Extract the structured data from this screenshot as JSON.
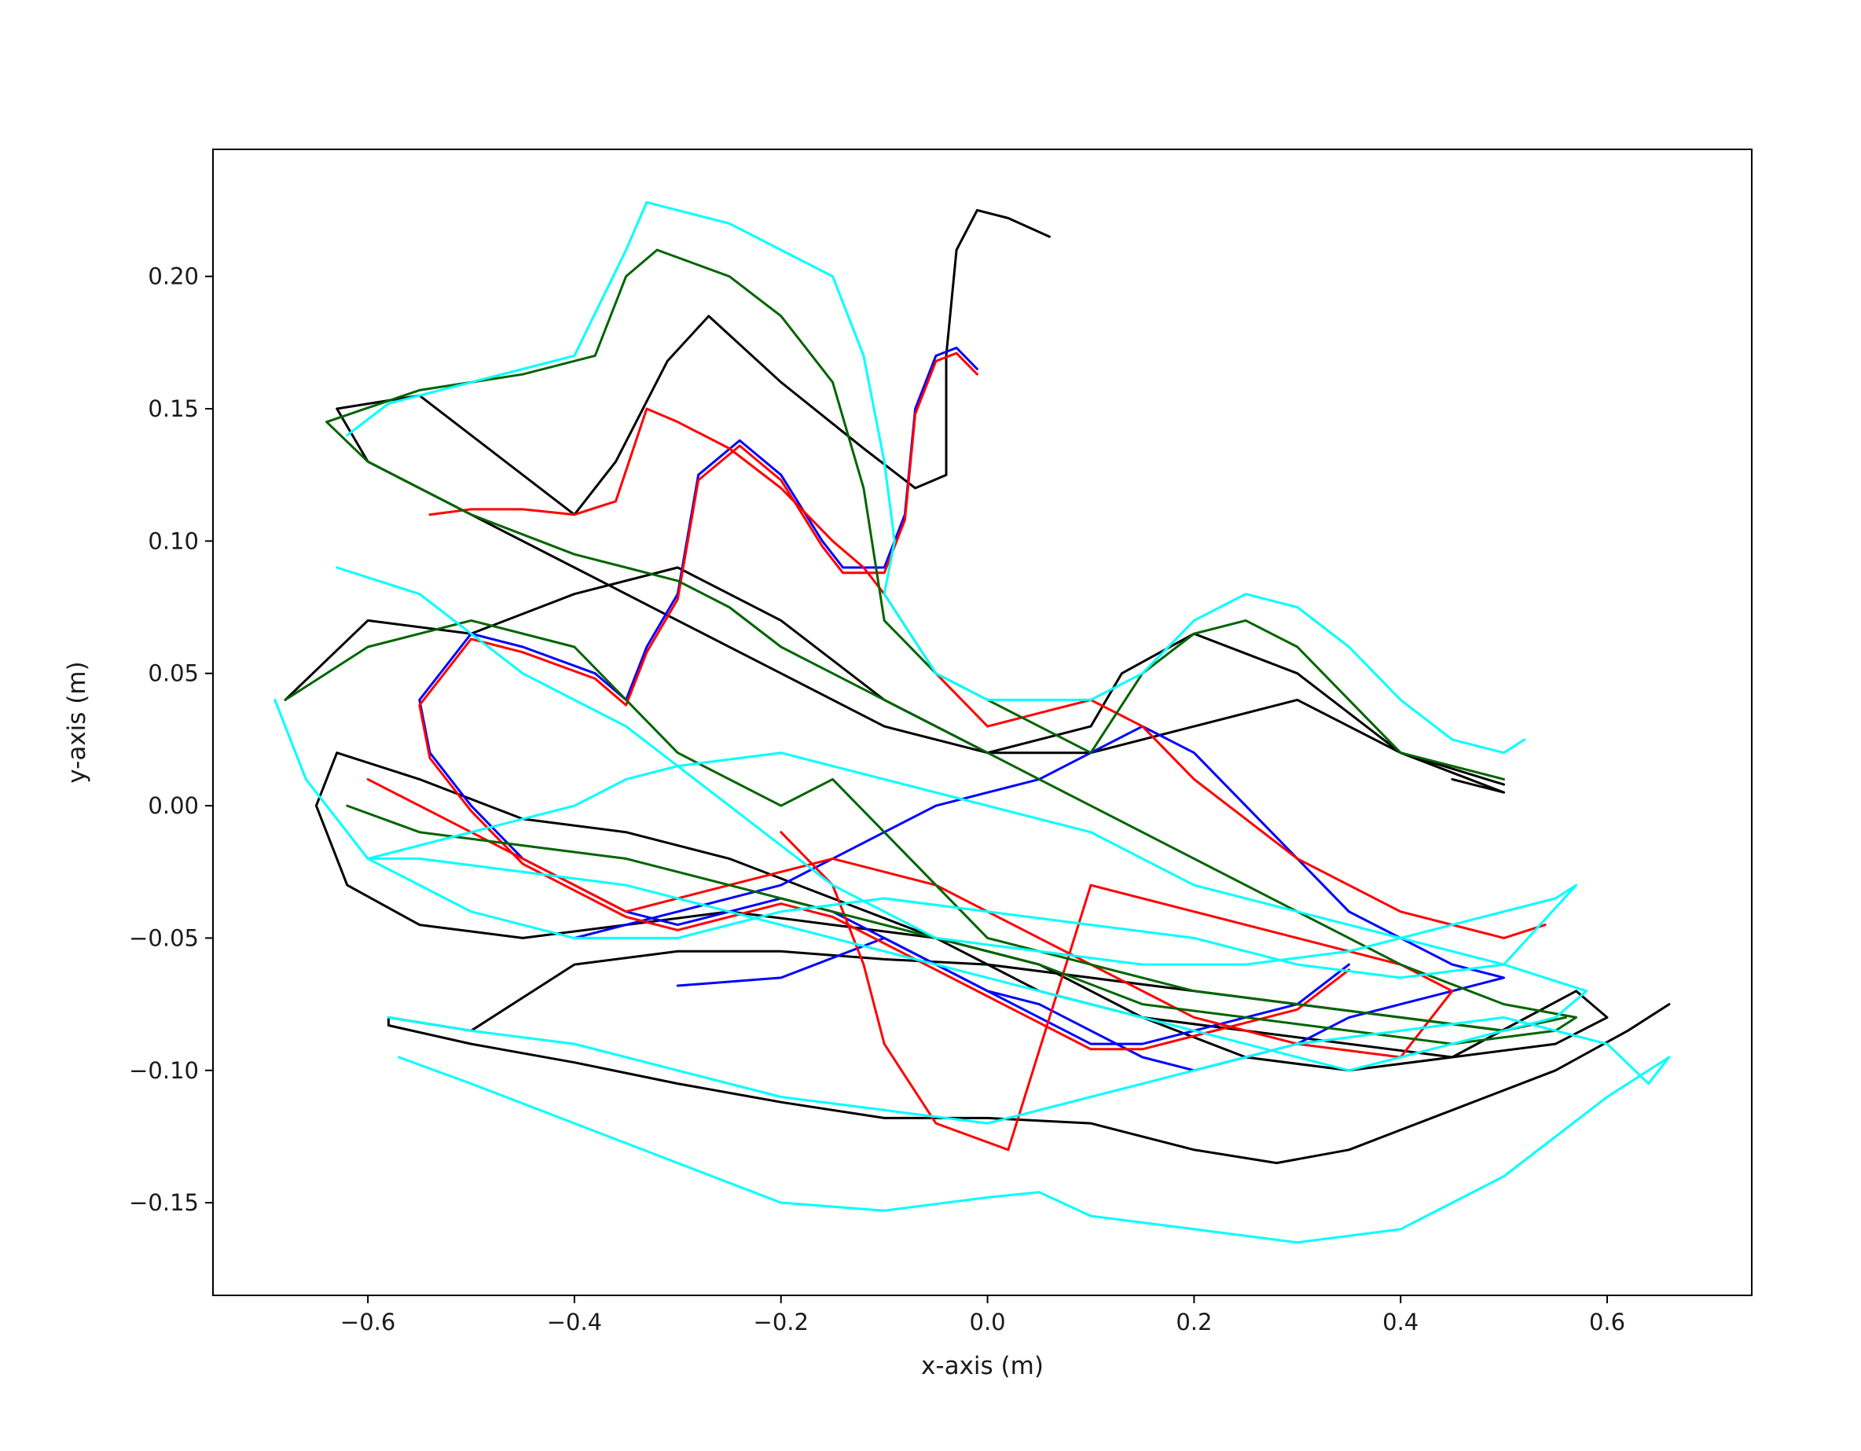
{
  "chart_data": {
    "type": "line",
    "xlabel": "x-axis (m)",
    "ylabel": "y-axis (m)",
    "xlim": [
      -0.75,
      0.74
    ],
    "ylim": [
      -0.185,
      0.248
    ],
    "grid": false,
    "xticks": [
      {
        "value": -0.6,
        "label": "−0.6"
      },
      {
        "value": -0.4,
        "label": "−0.4"
      },
      {
        "value": -0.2,
        "label": "−0.2"
      },
      {
        "value": 0.0,
        "label": "0.0"
      },
      {
        "value": 0.2,
        "label": "0.2"
      },
      {
        "value": 0.4,
        "label": "0.4"
      },
      {
        "value": 0.6,
        "label": "0.6"
      }
    ],
    "yticks": [
      {
        "value": -0.15,
        "label": "−0.15"
      },
      {
        "value": -0.1,
        "label": "−0.10"
      },
      {
        "value": -0.05,
        "label": "−0.05"
      },
      {
        "value": 0.0,
        "label": "0.00"
      },
      {
        "value": 0.05,
        "label": "0.05"
      },
      {
        "value": 0.1,
        "label": "0.10"
      },
      {
        "value": 0.15,
        "label": "0.15"
      },
      {
        "value": 0.2,
        "label": "0.20"
      }
    ],
    "series": [
      {
        "color": "#000000",
        "x": [
          0.06,
          0.02,
          -0.01,
          -0.03,
          -0.04,
          -0.04,
          -0.07,
          -0.12,
          -0.2,
          -0.27,
          -0.31,
          -0.36,
          -0.4,
          -0.55,
          -0.63,
          -0.6,
          -0.5,
          -0.4,
          -0.3,
          -0.2,
          -0.1,
          0.0,
          0.1,
          0.2,
          0.3,
          0.4,
          0.5
        ],
        "y": [
          0.215,
          0.222,
          0.225,
          0.21,
          0.17,
          0.125,
          0.12,
          0.135,
          0.16,
          0.185,
          0.168,
          0.13,
          0.11,
          0.155,
          0.15,
          0.13,
          0.11,
          0.09,
          0.07,
          0.05,
          0.03,
          0.02,
          0.02,
          0.03,
          0.04,
          0.02,
          0.008
        ]
      },
      {
        "color": "#000000",
        "x": [
          0.66,
          0.62,
          0.55,
          0.45,
          0.35,
          0.28,
          0.2,
          0.1,
          0.0,
          -0.1,
          -0.2,
          -0.3,
          -0.4,
          -0.5,
          -0.58,
          -0.58,
          -0.5,
          -0.4,
          -0.3,
          -0.2,
          -0.1,
          0.0,
          0.1,
          0.2,
          0.3,
          0.4,
          0.5
        ],
        "y": [
          -0.075,
          -0.085,
          -0.1,
          -0.115,
          -0.13,
          -0.135,
          -0.13,
          -0.12,
          -0.118,
          -0.118,
          -0.112,
          -0.105,
          -0.097,
          -0.09,
          -0.083,
          -0.08,
          -0.085,
          -0.06,
          -0.055,
          -0.055,
          -0.058,
          -0.06,
          -0.065,
          -0.07,
          -0.075,
          -0.08,
          -0.085
        ]
      },
      {
        "color": "#000000",
        "x": [
          -0.65,
          -0.62,
          -0.55,
          -0.45,
          -0.35,
          -0.25,
          -0.15,
          -0.05,
          0.05,
          0.15,
          0.25,
          0.35,
          0.45,
          0.57,
          0.6,
          0.55,
          0.45,
          0.35,
          0.25,
          0.15,
          0.05,
          -0.05,
          -0.15,
          -0.25,
          -0.35,
          -0.45,
          -0.55,
          -0.63,
          -0.65
        ],
        "y": [
          0.0,
          -0.03,
          -0.045,
          -0.05,
          -0.045,
          -0.04,
          -0.045,
          -0.05,
          -0.06,
          -0.08,
          -0.095,
          -0.1,
          -0.095,
          -0.07,
          -0.08,
          -0.09,
          -0.095,
          -0.09,
          -0.085,
          -0.08,
          -0.07,
          -0.05,
          -0.035,
          -0.02,
          -0.01,
          -0.005,
          0.01,
          0.02,
          0.0
        ]
      },
      {
        "color": "#000000",
        "x": [
          -0.68,
          -0.6,
          -0.5,
          -0.4,
          -0.3,
          -0.2,
          -0.1,
          0.0,
          0.1,
          0.13,
          0.2,
          0.3,
          0.4,
          0.5,
          0.45
        ],
        "y": [
          0.04,
          0.07,
          0.065,
          0.08,
          0.09,
          0.07,
          0.04,
          0.02,
          0.03,
          0.05,
          0.065,
          0.05,
          0.02,
          0.005,
          0.01
        ]
      },
      {
        "color": "#0000ff",
        "x": [
          -0.01,
          -0.03,
          -0.05,
          -0.07,
          -0.08,
          -0.1,
          -0.14,
          -0.16,
          -0.2,
          -0.24,
          -0.28,
          -0.3,
          -0.33,
          -0.35,
          -0.38,
          -0.45,
          -0.5,
          -0.55,
          -0.54,
          -0.5,
          -0.45,
          -0.4,
          -0.35,
          -0.3,
          -0.25,
          -0.2,
          -0.15,
          -0.1,
          -0.05,
          0.0,
          0.05,
          0.1,
          0.15,
          0.2,
          0.25,
          0.3,
          0.35
        ],
        "y": [
          0.165,
          0.173,
          0.17,
          0.15,
          0.11,
          0.09,
          0.09,
          0.1,
          0.125,
          0.138,
          0.125,
          0.08,
          0.06,
          0.04,
          0.05,
          0.06,
          0.065,
          0.04,
          0.02,
          0.0,
          -0.02,
          -0.03,
          -0.04,
          -0.045,
          -0.04,
          -0.035,
          -0.04,
          -0.05,
          -0.06,
          -0.07,
          -0.08,
          -0.09,
          -0.09,
          -0.085,
          -0.08,
          -0.075,
          -0.06
        ]
      },
      {
        "color": "#0000ff",
        "x": [
          -0.4,
          -0.35,
          -0.3,
          -0.25,
          -0.2,
          -0.15,
          -0.1,
          -0.05,
          0.0,
          0.05,
          0.1,
          0.15,
          0.2,
          0.25,
          0.3,
          0.35,
          0.4,
          0.45,
          0.5,
          0.45,
          0.4,
          0.35,
          0.3,
          0.25,
          0.2,
          0.15,
          0.1,
          0.05,
          0.0,
          -0.05,
          -0.1,
          -0.2,
          -0.3
        ],
        "y": [
          -0.05,
          -0.045,
          -0.04,
          -0.035,
          -0.03,
          -0.02,
          -0.01,
          0.0,
          0.005,
          0.01,
          0.02,
          0.03,
          0.02,
          0.0,
          -0.02,
          -0.04,
          -0.05,
          -0.06,
          -0.065,
          -0.07,
          -0.075,
          -0.08,
          -0.09,
          -0.095,
          -0.1,
          -0.095,
          -0.085,
          -0.075,
          -0.07,
          -0.06,
          -0.05,
          -0.065,
          -0.068
        ]
      },
      {
        "color": "#ff0000",
        "x": [
          -0.01,
          -0.03,
          -0.05,
          -0.07,
          -0.08,
          -0.1,
          -0.14,
          -0.16,
          -0.2,
          -0.24,
          -0.28,
          -0.3,
          -0.33,
          -0.35,
          -0.38,
          -0.45,
          -0.5,
          -0.55,
          -0.54,
          -0.5,
          -0.45,
          -0.4,
          -0.35,
          -0.3,
          -0.25,
          -0.2,
          -0.15,
          -0.1,
          -0.05,
          0.0,
          0.05,
          0.1,
          0.15,
          0.2,
          0.25,
          0.3,
          0.35
        ],
        "y": [
          0.163,
          0.171,
          0.168,
          0.148,
          0.108,
          0.088,
          0.088,
          0.098,
          0.123,
          0.136,
          0.123,
          0.078,
          0.058,
          0.038,
          0.048,
          0.058,
          0.063,
          0.038,
          0.018,
          -0.002,
          -0.022,
          -0.032,
          -0.042,
          -0.047,
          -0.042,
          -0.037,
          -0.042,
          -0.052,
          -0.062,
          -0.072,
          -0.082,
          -0.092,
          -0.092,
          -0.087,
          -0.082,
          -0.077,
          -0.062
        ]
      },
      {
        "color": "#ff0000",
        "x": [
          -0.54,
          -0.5,
          -0.45,
          -0.4,
          -0.36,
          -0.33,
          -0.3,
          -0.25,
          -0.2,
          -0.15,
          -0.12,
          -0.1,
          -0.05,
          0.0,
          0.05,
          0.1,
          0.15,
          0.2,
          0.3,
          0.4,
          0.5,
          0.54
        ],
        "y": [
          0.11,
          0.112,
          0.112,
          0.11,
          0.115,
          0.15,
          0.145,
          0.135,
          0.12,
          0.1,
          0.09,
          0.08,
          0.05,
          0.03,
          0.035,
          0.04,
          0.03,
          0.01,
          -0.02,
          -0.04,
          -0.05,
          -0.045
        ]
      },
      {
        "color": "#ff0000",
        "x": [
          -0.6,
          -0.55,
          -0.5,
          -0.45,
          -0.4,
          -0.35,
          -0.3,
          -0.25,
          -0.2,
          -0.15,
          -0.1,
          -0.05,
          0.0,
          0.05,
          0.1,
          0.2,
          0.3,
          0.4,
          0.45,
          0.4,
          0.3,
          0.2,
          0.1,
          0.02,
          -0.05,
          -0.1,
          -0.12,
          -0.15,
          -0.2
        ],
        "y": [
          0.01,
          0.0,
          -0.01,
          -0.02,
          -0.03,
          -0.04,
          -0.035,
          -0.03,
          -0.025,
          -0.02,
          -0.025,
          -0.03,
          -0.04,
          -0.05,
          -0.06,
          -0.08,
          -0.09,
          -0.095,
          -0.07,
          -0.06,
          -0.05,
          -0.04,
          -0.03,
          -0.13,
          -0.12,
          -0.09,
          -0.06,
          -0.03,
          -0.01
        ]
      },
      {
        "color": "#006400",
        "x": [
          -0.64,
          -0.55,
          -0.45,
          -0.38,
          -0.35,
          -0.32,
          -0.25,
          -0.2,
          -0.15,
          -0.12,
          -0.1,
          -0.05,
          0.0,
          0.1,
          0.15,
          0.2,
          0.25,
          0.3,
          0.35,
          0.4,
          0.5
        ],
        "y": [
          0.145,
          0.157,
          0.163,
          0.17,
          0.2,
          0.21,
          0.2,
          0.185,
          0.16,
          0.12,
          0.07,
          0.05,
          0.04,
          0.02,
          0.05,
          0.065,
          0.07,
          0.06,
          0.04,
          0.02,
          0.01
        ]
      },
      {
        "color": "#006400",
        "x": [
          -0.64,
          -0.6,
          -0.5,
          -0.4,
          -0.35,
          -0.3,
          -0.25,
          -0.2,
          -0.15,
          -0.1,
          -0.05,
          0.0,
          0.05,
          0.1,
          0.2,
          0.3,
          0.4,
          0.5,
          0.57,
          0.55,
          0.45,
          0.35,
          0.25,
          0.15,
          0.05,
          -0.05,
          -0.15,
          -0.25,
          -0.35,
          -0.45,
          -0.55,
          -0.62
        ],
        "y": [
          0.145,
          0.13,
          0.11,
          0.095,
          0.09,
          0.085,
          0.075,
          0.06,
          0.05,
          0.04,
          0.03,
          0.02,
          0.01,
          0.0,
          -0.02,
          -0.04,
          -0.06,
          -0.075,
          -0.08,
          -0.085,
          -0.09,
          -0.085,
          -0.08,
          -0.075,
          -0.06,
          -0.05,
          -0.04,
          -0.03,
          -0.02,
          -0.015,
          -0.01,
          0.0
        ]
      },
      {
        "color": "#006400",
        "x": [
          -0.68,
          -0.6,
          -0.5,
          -0.4,
          -0.3,
          -0.2,
          -0.15,
          -0.1,
          -0.05,
          0.0,
          0.1,
          0.2,
          0.3,
          0.4,
          0.5,
          0.56
        ],
        "y": [
          0.04,
          0.06,
          0.07,
          0.06,
          0.02,
          0.0,
          0.01,
          -0.01,
          -0.03,
          -0.05,
          -0.06,
          -0.07,
          -0.075,
          -0.08,
          -0.085,
          -0.08
        ]
      },
      {
        "color": "#00ffff",
        "x": [
          -0.62,
          -0.58,
          -0.5,
          -0.45,
          -0.4,
          -0.35,
          -0.33,
          -0.3,
          -0.25,
          -0.2,
          -0.15,
          -0.12,
          -0.1,
          -0.09,
          -0.1,
          -0.05,
          0.0,
          0.1,
          0.15,
          0.2,
          0.25,
          0.3,
          0.35,
          0.4,
          0.45,
          0.5,
          0.52
        ],
        "y": [
          0.14,
          0.152,
          0.16,
          0.165,
          0.17,
          0.21,
          0.228,
          0.225,
          0.22,
          0.21,
          0.2,
          0.17,
          0.13,
          0.1,
          0.08,
          0.05,
          0.04,
          0.04,
          0.05,
          0.07,
          0.08,
          0.075,
          0.06,
          0.04,
          0.025,
          0.02,
          0.025
        ]
      },
      {
        "color": "#00ffff",
        "x": [
          -0.57,
          -0.5,
          -0.4,
          -0.3,
          -0.2,
          -0.1,
          0.0,
          0.05,
          0.1,
          0.2,
          0.3,
          0.4,
          0.5,
          0.6,
          0.66,
          0.64,
          0.6,
          0.5,
          0.4,
          0.3,
          0.2,
          0.1,
          0.0,
          -0.1,
          -0.2,
          -0.3,
          -0.4,
          -0.5,
          -0.58
        ],
        "y": [
          -0.095,
          -0.105,
          -0.12,
          -0.135,
          -0.15,
          -0.153,
          -0.148,
          -0.146,
          -0.155,
          -0.16,
          -0.165,
          -0.16,
          -0.14,
          -0.11,
          -0.095,
          -0.105,
          -0.09,
          -0.08,
          -0.085,
          -0.09,
          -0.1,
          -0.11,
          -0.12,
          -0.115,
          -0.11,
          -0.1,
          -0.09,
          -0.085,
          -0.08
        ]
      },
      {
        "color": "#00ffff",
        "x": [
          -0.69,
          -0.66,
          -0.6,
          -0.5,
          -0.4,
          -0.3,
          -0.2,
          -0.1,
          0.0,
          0.1,
          0.2,
          0.3,
          0.4,
          0.5,
          0.57,
          0.55,
          0.45,
          0.35,
          0.25,
          0.15,
          0.05,
          -0.05,
          -0.15,
          -0.25,
          -0.35,
          -0.45,
          -0.55,
          -0.63
        ],
        "y": [
          0.04,
          0.01,
          -0.02,
          -0.04,
          -0.05,
          -0.05,
          -0.04,
          -0.035,
          -0.04,
          -0.045,
          -0.05,
          -0.06,
          -0.065,
          -0.06,
          -0.03,
          -0.035,
          -0.045,
          -0.055,
          -0.06,
          -0.06,
          -0.055,
          -0.05,
          -0.03,
          0.0,
          0.03,
          0.05,
          0.08,
          0.09
        ]
      },
      {
        "color": "#00ffff",
        "x": [
          -0.6,
          -0.5,
          -0.4,
          -0.35,
          -0.3,
          -0.2,
          -0.1,
          0.0,
          0.1,
          0.15,
          0.2,
          0.3,
          0.4,
          0.5,
          0.58,
          0.55,
          0.45,
          0.35,
          0.25,
          0.15,
          0.05,
          -0.05,
          -0.15,
          -0.25,
          -0.35,
          -0.45,
          -0.55,
          -0.6
        ],
        "y": [
          -0.02,
          -0.01,
          0.0,
          0.01,
          0.015,
          0.02,
          0.01,
          0.0,
          -0.01,
          -0.02,
          -0.03,
          -0.04,
          -0.05,
          -0.06,
          -0.07,
          -0.08,
          -0.09,
          -0.1,
          -0.09,
          -0.08,
          -0.07,
          -0.06,
          -0.05,
          -0.04,
          -0.03,
          -0.025,
          -0.02,
          -0.02
        ]
      }
    ]
  }
}
